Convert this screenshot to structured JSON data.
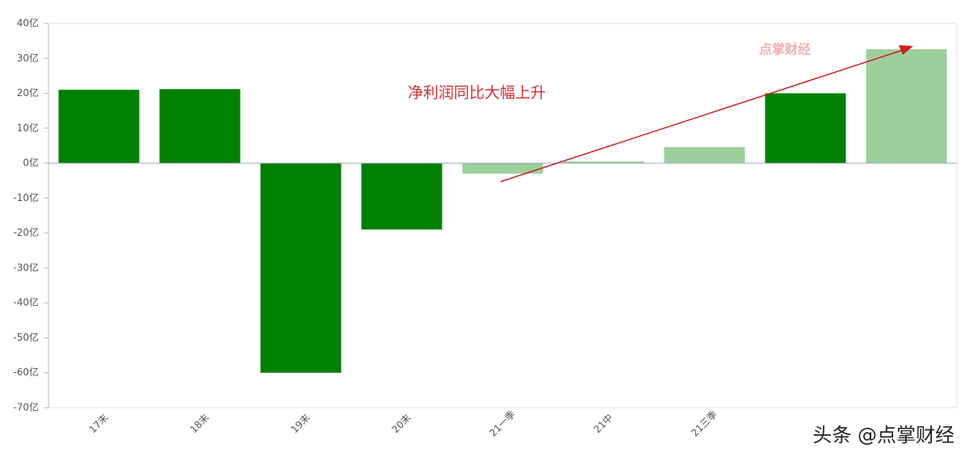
{
  "chart_data": {
    "type": "bar",
    "categories": [
      "17末",
      "18末",
      "19末",
      "20末",
      "21一季",
      "21中",
      "21三季",
      null,
      null
    ],
    "values": [
      21,
      21.2,
      -60,
      -19,
      -3,
      0.5,
      4.6,
      20,
      32.6
    ],
    "colors": [
      "#008000",
      "#008000",
      "#008000",
      "#008000",
      "#9ccf9c",
      "#9ccf9c",
      "#9ccf9c",
      "#008000",
      "#9ccf9c"
    ],
    "ylim": [
      -70,
      40
    ],
    "yticks": [
      {
        "value": 40,
        "label": "40亿"
      },
      {
        "value": 30,
        "label": "30亿"
      },
      {
        "value": 20,
        "label": "20亿"
      },
      {
        "value": 10,
        "label": "10亿"
      },
      {
        "value": 0,
        "label": "0亿"
      },
      {
        "value": -10,
        "label": "-10亿"
      },
      {
        "value": -20,
        "label": "-20亿"
      },
      {
        "value": -30,
        "label": "-30亿"
      },
      {
        "value": -40,
        "label": "-40亿"
      },
      {
        "value": -50,
        "label": "-50亿"
      },
      {
        "value": -60,
        "label": "-60亿"
      },
      {
        "value": -70,
        "label": "-70亿"
      }
    ],
    "annotation": "净利润同比大幅上升",
    "logo_text": "点掌财经",
    "watermark": "头条 @点掌财经"
  }
}
